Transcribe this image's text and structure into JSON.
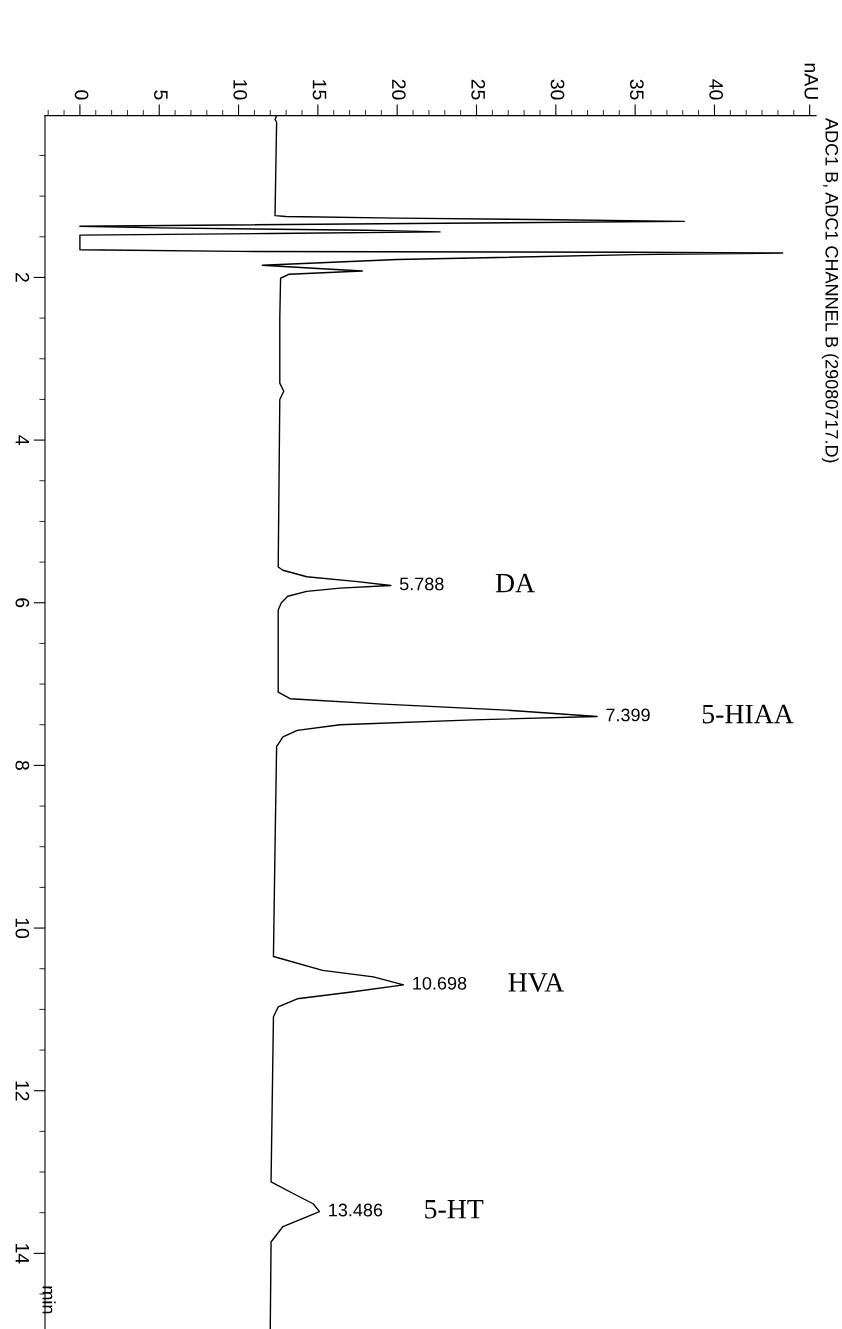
{
  "chart_data": {
    "type": "line",
    "title": "ADC1 B, ADC1 CHANNEL B (29080717.D)",
    "ylabel": "min",
    "x": [
      12.4,
      12.3,
      12.4,
      12.3,
      13.0,
      20.0,
      30.0,
      38.1,
      25.0,
      0.0,
      5.0,
      18.0,
      22.7,
      12.0,
      0.0,
      0.0,
      10.0,
      35.0,
      44.3,
      35.0,
      20.0,
      11.5,
      15.0,
      17.8,
      13.2,
      12.65,
      12.6,
      12.6,
      12.85,
      12.6,
      12.5,
      12.8,
      14.3,
      17.5,
      19.6,
      16.4,
      14.3,
      13.1,
      12.7,
      12.5,
      12.5,
      13.25,
      18.5,
      26.9,
      32.6,
      24.8,
      16.4,
      13.7,
      12.8,
      12.4,
      12.3,
      12.2,
      15.3,
      18.5,
      20.4,
      17.0,
      13.7,
      12.5,
      12.2,
      12.05,
      13.5,
      14.7,
      15.1,
      14.3,
      12.8,
      12.05,
      12.0
    ],
    "series": [
      {
        "color": "#000000",
        "values": [
          0.01,
          0.06,
          0.09,
          1.24,
          1.25,
          1.27,
          1.29,
          1.31,
          1.33,
          1.37,
          1.39,
          1.42,
          1.44,
          1.46,
          1.48,
          1.66,
          1.68,
          1.69,
          1.7,
          1.72,
          1.78,
          1.85,
          1.89,
          1.92,
          1.96,
          2.01,
          2.5,
          3.3,
          3.4,
          3.5,
          5.56,
          5.6,
          5.68,
          5.74,
          5.788,
          5.82,
          5.86,
          5.92,
          6.0,
          6.09,
          7.1,
          7.18,
          7.24,
          7.32,
          7.399,
          7.44,
          7.5,
          7.57,
          7.65,
          7.77,
          9.0,
          10.35,
          10.52,
          10.6,
          10.698,
          10.79,
          10.87,
          10.97,
          11.09,
          13.12,
          13.27,
          13.39,
          13.486,
          13.55,
          13.67,
          13.86,
          14.93
        ]
      }
    ],
    "xlim": [
      -2.2,
      46.4
    ],
    "ylim": [
      14.93,
      0.01
    ],
    "yticks": [
      {
        "value": 0.5,
        "label": null
      },
      {
        "value": 1,
        "label": null
      },
      {
        "value": 1.5,
        "label": null
      },
      2,
      {
        "value": 2.5,
        "label": null
      },
      {
        "value": 3,
        "label": null
      },
      {
        "value": 3.5,
        "label": null
      },
      4,
      {
        "value": 4.5,
        "label": null
      },
      {
        "value": 5,
        "label": null
      },
      {
        "value": 5.5,
        "label": null
      },
      6,
      {
        "value": 6.5,
        "label": null
      },
      {
        "value": 7,
        "label": null
      },
      {
        "value": 7.5,
        "label": null
      },
      8,
      {
        "value": 8.5,
        "label": null
      },
      {
        "value": 9,
        "label": null
      },
      {
        "value": 9.5,
        "label": null
      },
      10,
      {
        "value": 10.5,
        "label": null
      },
      {
        "value": 11,
        "label": null
      },
      {
        "value": 11.5,
        "label": null
      },
      12,
      {
        "value": 12.5,
        "label": null
      },
      {
        "value": 13,
        "label": null
      },
      {
        "value": 13.5,
        "label": null
      },
      14,
      {
        "value": 14.5,
        "label": null
      }
    ],
    "xticks": [
      {
        "value": -2,
        "label": null
      },
      {
        "value": -1,
        "label": null
      },
      0,
      {
        "value": 1,
        "label": null
      },
      {
        "value": 2,
        "label": null
      },
      {
        "value": 3,
        "label": null
      },
      {
        "value": 4,
        "label": null
      },
      5,
      {
        "value": 6,
        "label": null
      },
      {
        "value": 7,
        "label": null
      },
      {
        "value": 8,
        "label": null
      },
      {
        "value": 9,
        "label": null
      },
      10,
      {
        "value": 11,
        "label": null
      },
      {
        "value": 12,
        "label": null
      },
      {
        "value": 13,
        "label": null
      },
      {
        "value": 14,
        "label": null
      },
      15,
      {
        "value": 16,
        "label": null
      },
      {
        "value": 17,
        "label": null
      },
      {
        "value": 18,
        "label": null
      },
      {
        "value": 19,
        "label": null
      },
      20,
      {
        "value": 21,
        "label": null
      },
      {
        "value": 22,
        "label": null
      },
      {
        "value": 23,
        "label": null
      },
      {
        "value": 24,
        "label": null
      },
      25,
      {
        "value": 26,
        "label": null
      },
      {
        "value": 27,
        "label": null
      },
      {
        "value": 28,
        "label": null
      },
      {
        "value": 29,
        "label": null
      },
      30,
      {
        "value": 31,
        "label": null
      },
      {
        "value": 32,
        "label": null
      },
      {
        "value": 33,
        "label": null
      },
      {
        "value": 34,
        "label": null
      },
      35,
      {
        "value": 36,
        "label": null
      },
      {
        "value": 37,
        "label": null
      },
      {
        "value": 38,
        "label": null
      },
      {
        "value": 39,
        "label": null
      },
      40,
      {
        "value": 41,
        "label": null
      },
      {
        "value": 42,
        "label": null
      },
      {
        "value": 43,
        "label": null
      },
      {
        "value": 44,
        "label": null
      },
      {
        "value": 45,
        "label": null
      },
      {
        "value": 46,
        "label": "nAU"
      }
    ],
    "annotations": [
      {
        "text": "5.788",
        "x": 19.6,
        "y": 5.788
      },
      {
        "text": "7.399",
        "x": 32.6,
        "y": 7.399
      },
      {
        "text": "10.698",
        "x": 20.4,
        "y": 10.698
      },
      {
        "text": "13.486",
        "x": 15.1,
        "y": 13.486
      },
      "DA",
      "5-HIAA",
      "HVA",
      "5-HT"
    ]
  }
}
